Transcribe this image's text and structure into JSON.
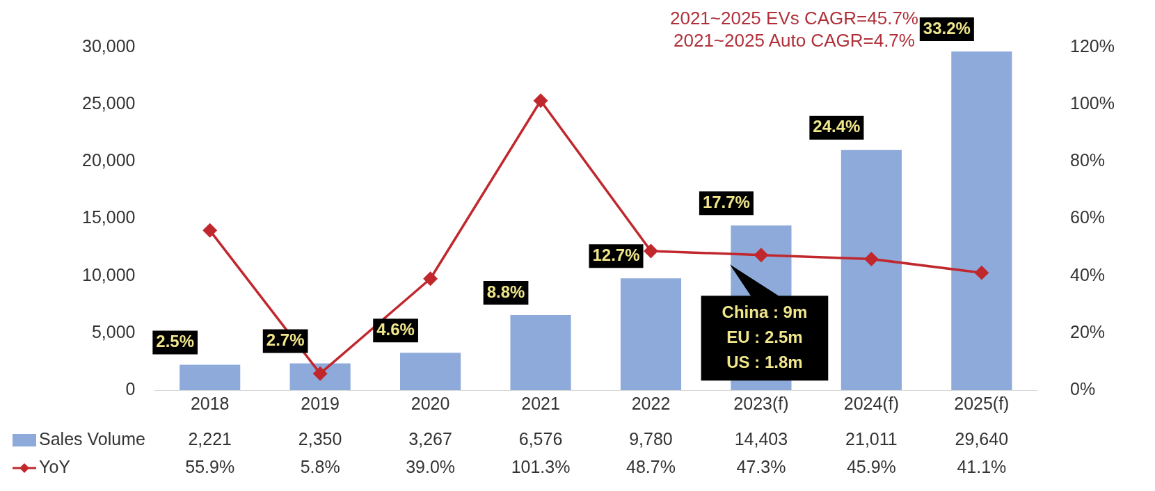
{
  "chart_data": {
    "type": "bar",
    "categories": [
      "2018",
      "2019",
      "2020",
      "2021",
      "2022",
      "2023(f)",
      "2024(f)",
      "2025(f)"
    ],
    "series": [
      {
        "name": "Sales Volume",
        "color": "#8eaadb",
        "values": [
          2221,
          2350,
          3267,
          6576,
          9780,
          14403,
          21011,
          29640
        ],
        "value_labels": [
          "2,221",
          "2,350",
          "3,267",
          "6,576",
          "9,780",
          "14,403",
          "21,011",
          "29,640"
        ]
      },
      {
        "name": "YoY",
        "type": "line",
        "axis": "y2",
        "color": "#c0282d",
        "marker": "diamond",
        "values": [
          55.9,
          5.8,
          39.0,
          101.3,
          48.7,
          47.3,
          45.9,
          41.1
        ],
        "value_labels": [
          "55.9%",
          "5.8%",
          "39.0%",
          "101.3%",
          "48.7%",
          "47.3%",
          "45.9%",
          "41.1%"
        ]
      }
    ],
    "ylim": [
      0,
      30000
    ],
    "yticks": [
      0,
      {
        "value": 5000,
        "label": "5,000"
      },
      {
        "value": 10000,
        "label": "10,000"
      },
      {
        "value": 15000,
        "label": "15,000"
      },
      {
        "value": 20000,
        "label": "20,000"
      },
      {
        "value": 25000,
        "label": "25,000"
      },
      {
        "value": 30000,
        "label": "30,000"
      }
    ],
    "y2lim": [
      0,
      120
    ],
    "y2ticks": [
      {
        "value": 0,
        "label": "0%"
      },
      {
        "value": 20,
        "label": "20%"
      },
      {
        "value": 40,
        "label": "40%"
      },
      {
        "value": 60,
        "label": "60%"
      },
      {
        "value": 80,
        "label": "80%"
      },
      {
        "value": 100,
        "label": "100%"
      },
      {
        "value": 120,
        "label": "120%"
      }
    ],
    "grid": false,
    "legend": "bottom",
    "annotations": [
      "2021~2025 EVs CAGR=45.7%",
      "2021~2025 Auto CAGR=4.7%",
      {
        "text": "China : 9m\nEU : 2.5m\nUS : 1.8m",
        "x": "2023(f)",
        "y": 11000
      },
      "2.5%",
      "2.7%",
      "4.6%",
      "8.8%",
      "12.7%",
      "17.7%",
      "24.4%",
      "33.2%"
    ]
  }
}
